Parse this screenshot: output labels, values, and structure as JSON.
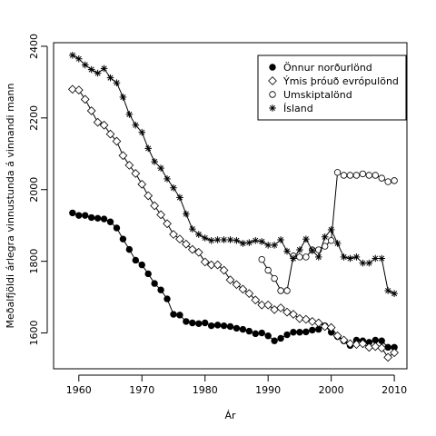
{
  "chart_data": {
    "type": "line",
    "title": "",
    "xlabel": "Ár",
    "ylabel": "Meðalfjöldi árlegra vinnustunda á vinnandi mann",
    "xlim": [
      1956,
      2012
    ],
    "ylim": [
      1500,
      2410
    ],
    "xticks": [
      1960,
      1970,
      1980,
      1990,
      2000,
      2010
    ],
    "yticks": [
      1600,
      1800,
      2000,
      2200,
      2400
    ],
    "grid": false,
    "legend_position": "top-right",
    "series": [
      {
        "name": "Önnur norðurlönd",
        "marker": "filled-circle",
        "x": [
          1959,
          1960,
          1961,
          1962,
          1963,
          1964,
          1965,
          1966,
          1967,
          1968,
          1969,
          1970,
          1971,
          1972,
          1973,
          1974,
          1975,
          1976,
          1977,
          1978,
          1979,
          1980,
          1981,
          1982,
          1983,
          1984,
          1985,
          1986,
          1987,
          1988,
          1989,
          1990,
          1991,
          1992,
          1993,
          1994,
          1995,
          1996,
          1997,
          1998,
          1999,
          2000,
          2001,
          2002,
          2003,
          2004,
          2005,
          2006,
          2007,
          2008,
          2009,
          2010
        ],
        "y": [
          1935,
          1928,
          1928,
          1922,
          1920,
          1918,
          1910,
          1893,
          1862,
          1833,
          1803,
          1790,
          1765,
          1738,
          1720,
          1695,
          1652,
          1650,
          1632,
          1628,
          1626,
          1628,
          1620,
          1622,
          1620,
          1618,
          1613,
          1610,
          1605,
          1598,
          1600,
          1592,
          1578,
          1585,
          1595,
          1602,
          1602,
          1603,
          1608,
          1610,
          1620,
          1602,
          1590,
          1578,
          1565,
          1580,
          1578,
          1574,
          1580,
          1578,
          1560,
          1560
        ]
      },
      {
        "name": "Ýmis þróuð evrópulönd",
        "marker": "open-diamond",
        "x": [
          1959,
          1960,
          1961,
          1962,
          1963,
          1964,
          1965,
          1966,
          1967,
          1968,
          1969,
          1970,
          1971,
          1972,
          1973,
          1974,
          1975,
          1976,
          1977,
          1978,
          1979,
          1980,
          1981,
          1982,
          1983,
          1984,
          1985,
          1986,
          1987,
          1988,
          1989,
          1990,
          1991,
          1992,
          1993,
          1994,
          1995,
          1996,
          1997,
          1998,
          1999,
          2000,
          2001,
          2002,
          2003,
          2004,
          2005,
          2006,
          2007,
          2008,
          2009,
          2010
        ],
        "y": [
          2280,
          2278,
          2252,
          2220,
          2188,
          2180,
          2155,
          2135,
          2095,
          2068,
          2045,
          2015,
          1983,
          1955,
          1930,
          1905,
          1875,
          1862,
          1848,
          1833,
          1825,
          1798,
          1790,
          1790,
          1775,
          1748,
          1735,
          1722,
          1710,
          1692,
          1678,
          1678,
          1665,
          1670,
          1658,
          1652,
          1640,
          1638,
          1632,
          1628,
          1618,
          1615,
          1592,
          1580,
          1570,
          1568,
          1570,
          1560,
          1562,
          1558,
          1532,
          1545
        ]
      },
      {
        "name": "Umskiptalönd",
        "marker": "open-circle",
        "x": [
          1989,
          1990,
          1991,
          1992,
          1993,
          1994,
          1995,
          1996,
          1997,
          1998,
          1999,
          2000,
          2001,
          2002,
          2003,
          2004,
          2005,
          2006,
          2007,
          2008,
          2009,
          2010
        ],
        "y": [
          1805,
          1775,
          1752,
          1718,
          1718,
          1815,
          1812,
          1812,
          1832,
          1832,
          1842,
          1858,
          2048,
          2040,
          2040,
          2040,
          2044,
          2040,
          2040,
          2032,
          2022,
          2025
        ]
      },
      {
        "name": "Ísland",
        "marker": "asterisk",
        "x": [
          1959,
          1960,
          1961,
          1962,
          1963,
          1964,
          1965,
          1966,
          1967,
          1968,
          1969,
          1970,
          1971,
          1972,
          1973,
          1974,
          1975,
          1976,
          1977,
          1978,
          1979,
          1980,
          1981,
          1982,
          1983,
          1984,
          1985,
          1986,
          1987,
          1988,
          1989,
          1990,
          1991,
          1992,
          1993,
          1994,
          1995,
          1996,
          1997,
          1998,
          1999,
          2000,
          2001,
          2002,
          2003,
          2004,
          2005,
          2006,
          2007,
          2008,
          2009,
          2010
        ],
        "y": [
          2375,
          2365,
          2348,
          2335,
          2325,
          2338,
          2312,
          2298,
          2258,
          2210,
          2180,
          2160,
          2115,
          2078,
          2060,
          2030,
          2005,
          1978,
          1932,
          1890,
          1875,
          1865,
          1858,
          1860,
          1860,
          1860,
          1858,
          1850,
          1852,
          1858,
          1855,
          1845,
          1845,
          1860,
          1828,
          1808,
          1832,
          1862,
          1830,
          1812,
          1868,
          1888,
          1850,
          1812,
          1808,
          1812,
          1795,
          1795,
          1808,
          1808,
          1718,
          1710
        ]
      }
    ]
  }
}
